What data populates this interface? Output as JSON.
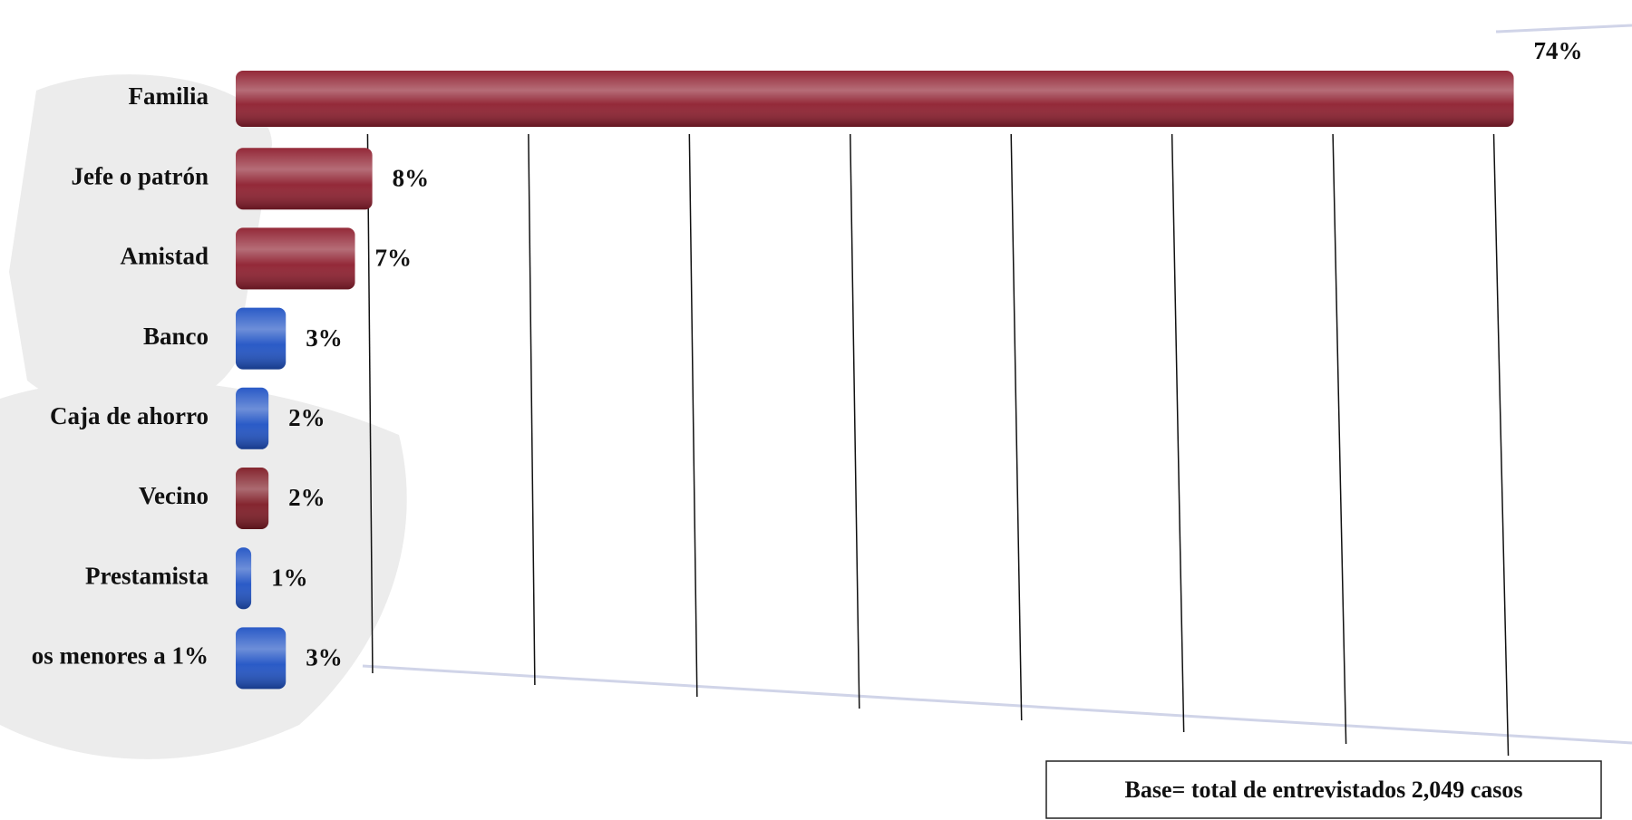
{
  "chart_data": {
    "type": "bar",
    "orientation": "horizontal",
    "categories": [
      "Familia",
      "Jefe o patrón",
      "Amistad",
      "Banco",
      "Caja de ahorro",
      "Vecino",
      "Prestamista",
      "os menores a 1%"
    ],
    "values": [
      74,
      8,
      7,
      3,
      2,
      2,
      1,
      3
    ],
    "value_labels": [
      "74%",
      "8%",
      "7%",
      "3%",
      "2%",
      "2%",
      "1%",
      "3%"
    ],
    "colors": [
      "#8e1e2e",
      "#8e1e2e",
      "#8e1e2e",
      "#1f52c4",
      "#1f52c4",
      "#7e1a24",
      "#1f52c4",
      "#1f52c4"
    ],
    "xlim": [
      0,
      80
    ],
    "note": "Base=  total de entrevistados 2,049 casos"
  }
}
